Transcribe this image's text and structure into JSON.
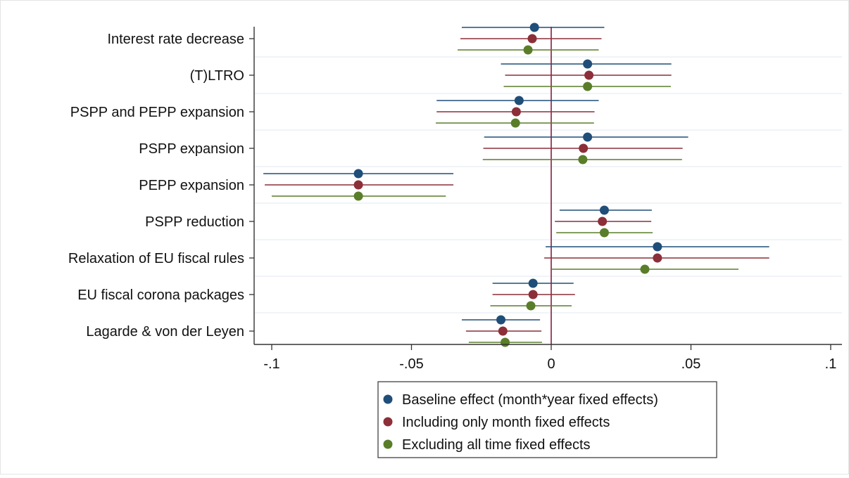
{
  "chart_data": {
    "type": "scatter",
    "subtype": "coefficient-plot",
    "orientation": "horizontal",
    "title": "",
    "xlabel": "",
    "ylabel": "",
    "xlim": [
      -0.1,
      0.1
    ],
    "xticks": [
      -0.1,
      -0.05,
      0,
      0.05,
      0.1
    ],
    "xtick_labels": [
      "-.1",
      "-.05",
      "0",
      ".05",
      ".1"
    ],
    "reference_line": 0,
    "reference_line_color": "#8b1a3c",
    "grid": "horizontal",
    "legend_position": "bottom-center",
    "categories": [
      "Interest rate decrease",
      "(T)LTRO",
      "PSPP and PEPP expansion",
      "PSPP expansion",
      "PEPP expansion",
      "PSPP reduction",
      "Relaxation of EU fiscal rules",
      "EU fiscal corona packages",
      "Lagarde & von der Leyen"
    ],
    "series": [
      {
        "name": "Baseline effect (month*year fixed effects)",
        "color": "#1f4e79",
        "values": [
          -0.006,
          0.013,
          -0.0115,
          0.013,
          -0.069,
          0.019,
          0.038,
          -0.0065,
          -0.018
        ],
        "ci_low": [
          -0.032,
          -0.018,
          -0.041,
          -0.024,
          -0.103,
          0.003,
          -0.002,
          -0.021,
          -0.032
        ],
        "ci_high": [
          0.019,
          0.043,
          0.017,
          0.049,
          -0.035,
          0.036,
          0.078,
          0.008,
          -0.004
        ]
      },
      {
        "name": "Including only month fixed effects",
        "color": "#8c2f39",
        "values": [
          -0.0068,
          0.0135,
          -0.0125,
          0.0115,
          -0.069,
          0.0183,
          0.038,
          -0.0065,
          -0.0173
        ],
        "ci_low": [
          -0.0325,
          -0.0165,
          -0.041,
          -0.0243,
          -0.1025,
          0.0013,
          -0.0025,
          -0.021,
          -0.0305
        ],
        "ci_high": [
          0.018,
          0.043,
          0.0155,
          0.047,
          -0.035,
          0.0358,
          0.078,
          0.0085,
          -0.0035
        ]
      },
      {
        "name": "Excluding all time fixed effects",
        "color": "#5a7d2a",
        "values": [
          -0.0083,
          0.013,
          -0.0128,
          0.0113,
          -0.069,
          0.019,
          0.0335,
          -0.0073,
          -0.0165
        ],
        "ci_low": [
          -0.0335,
          -0.017,
          -0.0413,
          -0.0245,
          -0.1,
          0.0018,
          0.0,
          -0.0218,
          -0.0295
        ],
        "ci_high": [
          0.017,
          0.0428,
          0.0153,
          0.0468,
          -0.0377,
          0.0363,
          0.067,
          0.0073,
          -0.0033
        ]
      }
    ]
  }
}
